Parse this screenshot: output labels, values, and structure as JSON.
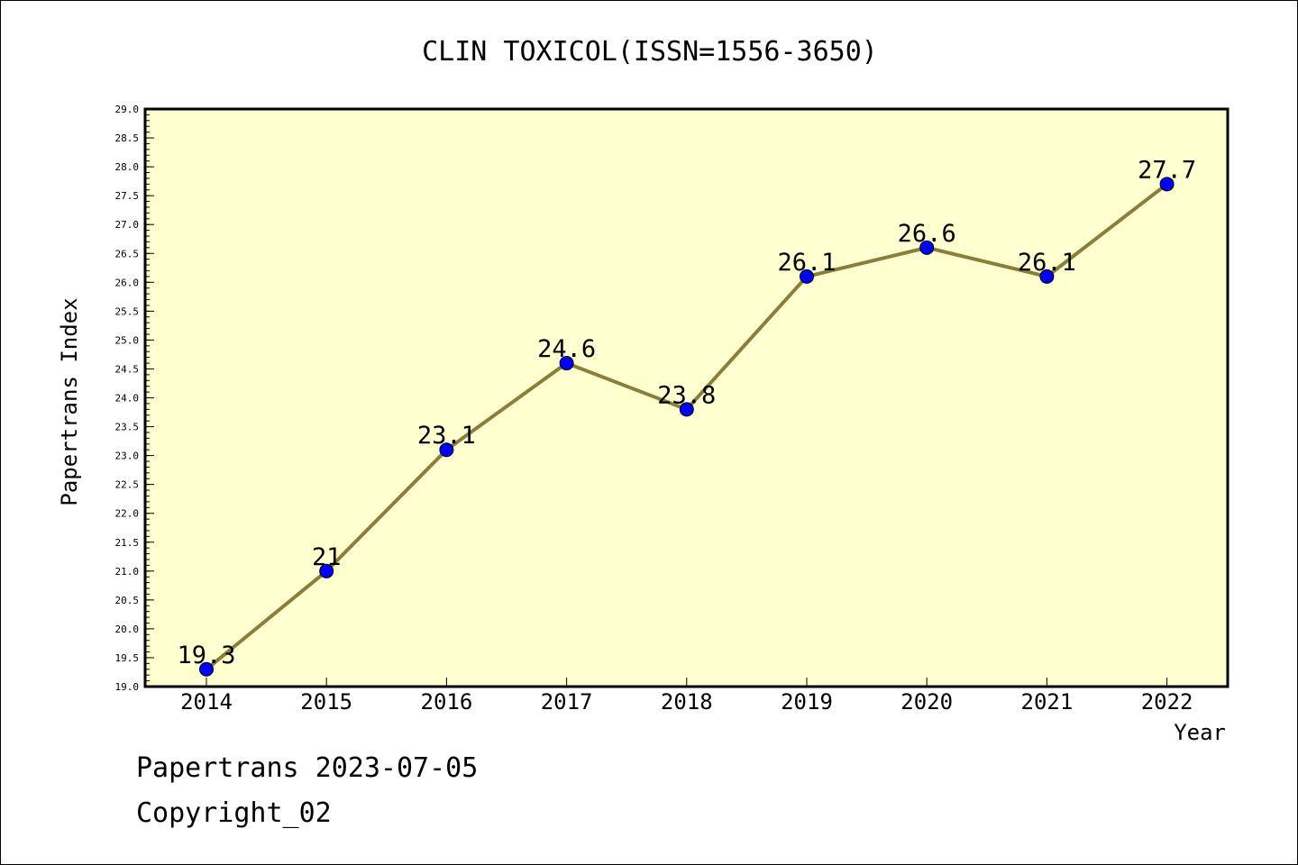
{
  "chart_data": {
    "type": "line",
    "title": "CLIN TOXICOL(ISSN=1556-3650)",
    "xlabel": "Year",
    "ylabel": "Papertrans Index",
    "categories": [
      "2014",
      "2015",
      "2016",
      "2017",
      "2018",
      "2019",
      "2020",
      "2021",
      "2022"
    ],
    "series": [
      {
        "values": [
          19.3,
          21,
          23.1,
          24.6,
          23.8,
          26.1,
          26.6,
          26.1,
          27.7
        ],
        "labels": [
          "19.3",
          "21",
          "23.1",
          "24.6",
          "23.8",
          "26.1",
          "26.6",
          "26.1",
          "27.7"
        ]
      }
    ],
    "ylim": [
      19.0,
      29.0
    ],
    "yticks": [
      "19.0",
      "19.5",
      "20.0",
      "20.5",
      "21.0",
      "21.5",
      "22.0",
      "22.5",
      "23.0",
      "23.5",
      "24.0",
      "24.5",
      "25.0",
      "25.5",
      "26.0",
      "26.5",
      "27.0",
      "27.5",
      "28.0",
      "28.5",
      "29.0"
    ],
    "grid": false,
    "legend": "none",
    "colors": {
      "plot_background": "#ffffd0",
      "line": "#8b7d3a",
      "marker": "#0000ff"
    }
  },
  "footer": {
    "line1": "Papertrans 2023-07-05",
    "line2": "Copyright_02"
  }
}
